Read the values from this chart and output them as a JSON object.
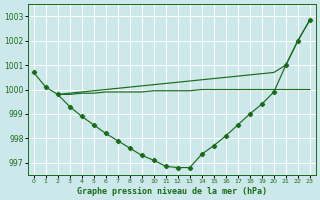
{
  "bg_color": "#cce8ea",
  "grid_color": "#ffffff",
  "line_color": "#1a6b1a",
  "title": "Graphe pression niveau de la mer (hPa)",
  "xlim": [
    -0.5,
    23.5
  ],
  "ylim": [
    996.5,
    1003.5
  ],
  "yticks": [
    997,
    998,
    999,
    1000,
    1001,
    1002,
    1003
  ],
  "xticks": [
    0,
    1,
    2,
    3,
    4,
    5,
    6,
    7,
    8,
    9,
    10,
    11,
    12,
    13,
    14,
    15,
    16,
    17,
    18,
    19,
    20,
    21,
    22,
    23
  ],
  "line_vshape": [
    1000.7,
    1000.1,
    999.8,
    999.3,
    998.9,
    998.55,
    998.2,
    997.9,
    997.6,
    997.3,
    997.1,
    996.85,
    996.8,
    996.8,
    997.35,
    997.7,
    998.1,
    998.55,
    999.0,
    999.4,
    999.9,
    1001.0,
    1002.0,
    1002.85
  ],
  "line_straight": [
    null,
    null,
    999.8,
    999.85,
    999.9,
    999.95,
    1000.0,
    1000.05,
    1000.1,
    1000.15,
    1000.2,
    1000.25,
    1000.3,
    1000.35,
    1000.4,
    1000.45,
    1000.5,
    1000.55,
    1000.6,
    1000.65,
    1000.7,
    1001.0,
    1002.0,
    1002.85
  ],
  "line_flat": [
    null,
    null,
    999.8,
    999.8,
    999.85,
    999.85,
    999.9,
    999.9,
    999.9,
    999.9,
    999.95,
    999.95,
    999.95,
    999.95,
    1000.0,
    1000.0,
    1000.0,
    1000.0,
    1000.0,
    1000.0,
    1000.0,
    1000.0,
    1000.0,
    1000.0
  ]
}
